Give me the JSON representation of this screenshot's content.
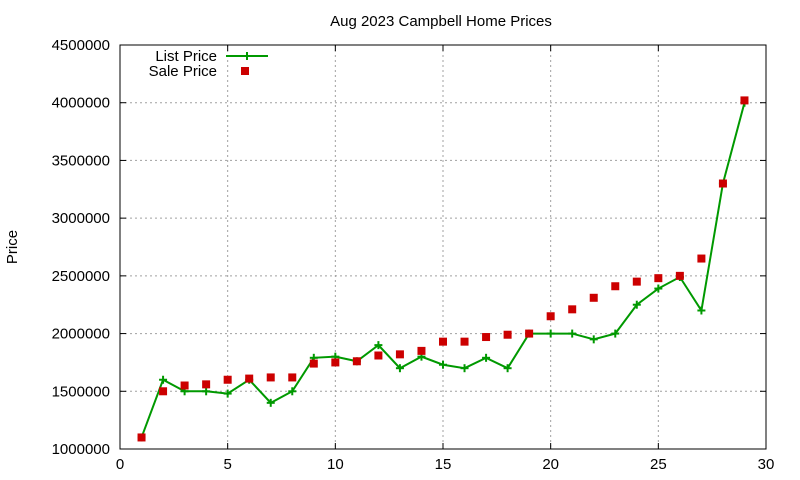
{
  "chart_data": {
    "type": "line",
    "title": "Aug 2023 Campbell Home Prices",
    "xlabel": "",
    "ylabel": "Price",
    "xlim": [
      0,
      30
    ],
    "ylim": [
      1000000,
      4500000
    ],
    "x_ticks": [
      "0",
      "5",
      "10",
      "15",
      "20",
      "25",
      "30"
    ],
    "y_ticks": [
      "1000000",
      "1500000",
      "2000000",
      "2500000",
      "3000000",
      "3500000",
      "4000000",
      "4500000"
    ],
    "grid": true,
    "legend_position": "top-left",
    "series": [
      {
        "name": "List Price",
        "style": "line-points",
        "color": "#009900",
        "x": [
          1,
          2,
          3,
          4,
          5,
          6,
          7,
          8,
          9,
          10,
          11,
          12,
          13,
          14,
          15,
          16,
          17,
          18,
          19,
          20,
          21,
          22,
          23,
          24,
          25,
          26,
          27,
          28,
          29
        ],
        "values": [
          1100000,
          1600000,
          1500000,
          1500000,
          1480000,
          1600000,
          1400000,
          1500000,
          1790000,
          1800000,
          1760000,
          1900000,
          1700000,
          1800000,
          1730000,
          1700000,
          1790000,
          1700000,
          2000000,
          2000000,
          2000000,
          1950000,
          2000000,
          2250000,
          2390000,
          2490000,
          2200000,
          3300000,
          4000000
        ]
      },
      {
        "name": "Sale Price",
        "style": "points",
        "color": "#cc0000",
        "x": [
          1,
          2,
          3,
          4,
          5,
          6,
          7,
          8,
          9,
          10,
          11,
          12,
          13,
          14,
          15,
          16,
          17,
          18,
          19,
          20,
          21,
          22,
          23,
          24,
          25,
          26,
          27,
          28,
          29
        ],
        "values": [
          1100000,
          1500000,
          1550000,
          1560000,
          1600000,
          1610000,
          1620000,
          1620000,
          1740000,
          1750000,
          1760000,
          1810000,
          1820000,
          1850000,
          1930000,
          1930000,
          1970000,
          1990000,
          2000000,
          2150000,
          2210000,
          2310000,
          2410000,
          2450000,
          2480000,
          2500000,
          2650000,
          3300000,
          4020000
        ]
      }
    ]
  }
}
